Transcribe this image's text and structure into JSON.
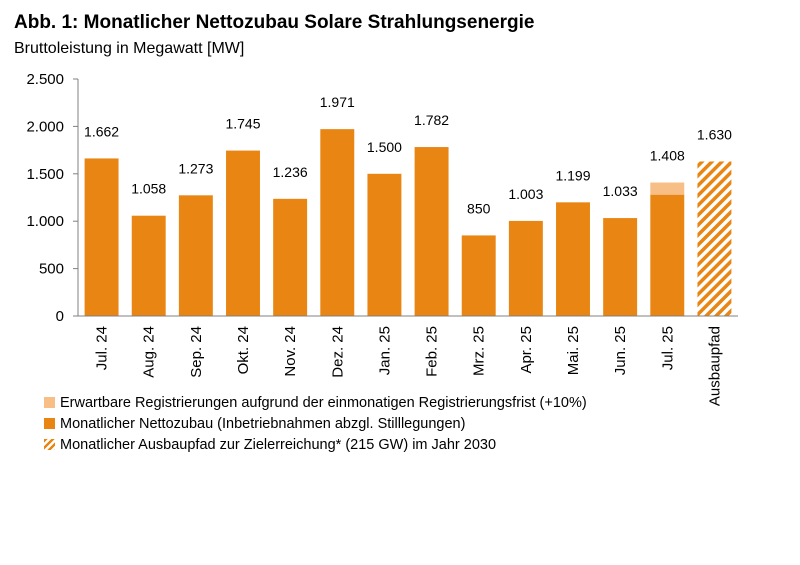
{
  "title": "Abb. 1: Monatlicher Nettozubau Solare Strahlungsenergie",
  "subtitle": "Bruttoleistung in Megawatt [MW]",
  "colors": {
    "bar": "#e98512",
    "expected": "#f7be86",
    "pathway_hatch": "#e98512",
    "axis": "#808080"
  },
  "legend": [
    {
      "key": "expected",
      "label": "Erwartbare Registrierungen aufgrund der einmonatigen Registrierungsfrist (+10%)",
      "style": "light"
    },
    {
      "key": "net",
      "label": "Monatlicher Nettozubau (Inbetriebnahmen abzgl. Stilllegungen)",
      "style": "solid"
    },
    {
      "key": "pathway",
      "label": "Monatlicher Ausbaupfad zur Zielerreichung* (215 GW) im Jahr 2030",
      "style": "hatched"
    }
  ],
  "chart_data": {
    "type": "bar",
    "stacked": true,
    "categories": [
      "Jul. 24",
      "Aug. 24",
      "Sep. 24",
      "Okt. 24",
      "Nov. 24",
      "Dez. 24",
      "Jan. 25",
      "Feb. 25",
      "Mrz. 25",
      "Apr. 25",
      "Mai. 25",
      "Jun. 25",
      "Jul. 25",
      "Ausbaupfad"
    ],
    "series": [
      {
        "name": "Monatlicher Nettozubau (Inbetriebnahmen abzgl. Stilllegungen)",
        "style": "solid",
        "values": [
          1662,
          1058,
          1273,
          1745,
          1236,
          1971,
          1500,
          1782,
          850,
          1003,
          1199,
          1033,
          1280,
          null
        ]
      },
      {
        "name": "Erwartbare Registrierungen aufgrund der einmonatigen Registrierungsfrist (+10%)",
        "style": "light",
        "values": [
          null,
          null,
          null,
          null,
          null,
          null,
          null,
          null,
          null,
          null,
          null,
          null,
          128,
          null
        ]
      },
      {
        "name": "Monatlicher Ausbaupfad zur Zielerreichung* (215 GW) im Jahr 2030",
        "style": "hatched",
        "values": [
          null,
          null,
          null,
          null,
          null,
          null,
          null,
          null,
          null,
          null,
          null,
          null,
          null,
          1630
        ]
      }
    ],
    "data_labels": [
      "1.662",
      "1.058",
      "1.273",
      "1.745",
      "1.236",
      "1.971",
      "1.500",
      "1.782",
      "850",
      "1.003",
      "1.199",
      "1.033",
      "1.408",
      "1.630"
    ],
    "yticks": [
      0,
      500,
      1000,
      1500,
      2000,
      2500
    ],
    "ytick_labels": [
      "0",
      "500",
      "1.000",
      "1.500",
      "2.000",
      "2.500"
    ],
    "ylim": [
      0,
      2500
    ],
    "grid": false,
    "legend_position": "bottom-left"
  }
}
